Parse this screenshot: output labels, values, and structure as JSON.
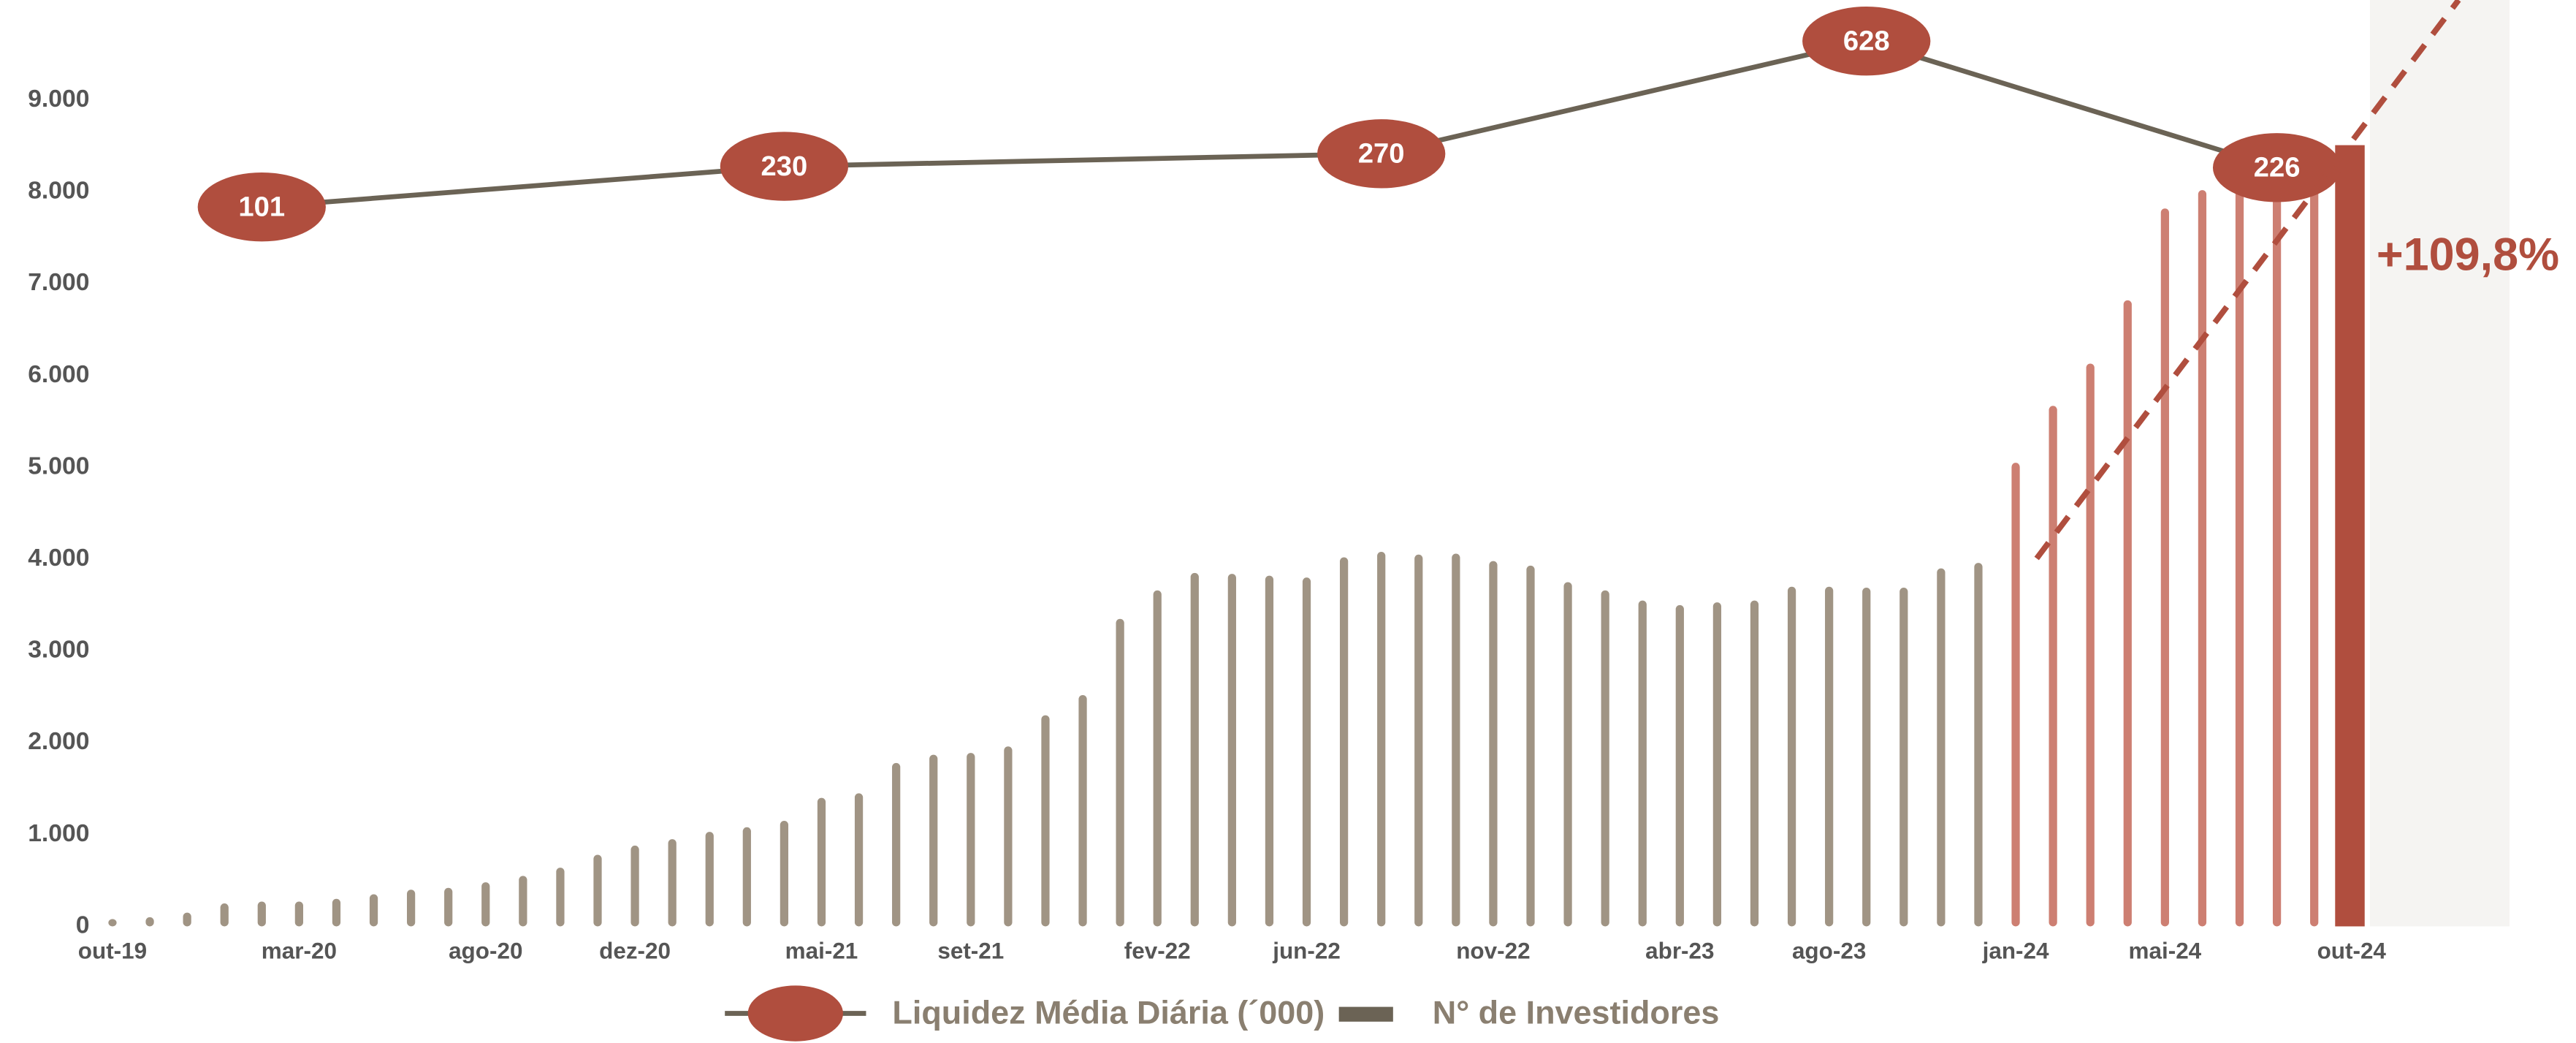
{
  "chart_data": {
    "type": "bar",
    "categories": [
      "out-19",
      null,
      null,
      null,
      null,
      "mar-20",
      null,
      null,
      null,
      null,
      "ago-20",
      null,
      null,
      null,
      "dez-20",
      null,
      null,
      null,
      null,
      "mai-21",
      null,
      null,
      null,
      "set-21",
      null,
      null,
      null,
      null,
      "fev-22",
      null,
      null,
      null,
      "jun-22",
      null,
      null,
      null,
      null,
      "nov-22",
      null,
      null,
      null,
      null,
      "abr-23",
      null,
      null,
      null,
      "ago-23",
      null,
      null,
      null,
      null,
      "jan-24",
      null,
      null,
      null,
      "mai-24",
      null,
      null,
      null,
      null,
      "out-24"
    ],
    "series": [
      {
        "name": "N° de Investidores",
        "type": "bar",
        "color": "#6b6355",
        "values": [
          80,
          100,
          150,
          250,
          270,
          270,
          300,
          350,
          400,
          420,
          480,
          550,
          640,
          780,
          880,
          950,
          1030,
          1080,
          1150,
          1400,
          1450,
          1780,
          1870,
          1890,
          1960,
          2300,
          2520,
          3350,
          3660,
          3850,
          3840,
          3820,
          3800,
          4020,
          4080,
          4050,
          4060,
          3980,
          3930,
          3750,
          3660,
          3550,
          3500,
          3530,
          3550,
          3700,
          3700,
          3690,
          3690,
          3900,
          3960,
          5050,
          5670,
          6130,
          6820,
          7820,
          8020,
          8330,
          8260,
          8420,
          8510
        ],
        "bar_colors": [
          "#a09484",
          "#a09484",
          "#a09484",
          "#a09484",
          "#a09484",
          "#a09484",
          "#a09484",
          "#a09484",
          "#a09484",
          "#a09484",
          "#a09484",
          "#a09484",
          "#a09484",
          "#a09484",
          "#a09484",
          "#a09484",
          "#a09484",
          "#a09484",
          "#a09484",
          "#a09484",
          "#a09484",
          "#a09484",
          "#a09484",
          "#a09484",
          "#a09484",
          "#a09484",
          "#a09484",
          "#a09484",
          "#a09484",
          "#a09484",
          "#a09484",
          "#a09484",
          "#a09484",
          "#a09484",
          "#a09484",
          "#a09484",
          "#a09484",
          "#a09484",
          "#a09484",
          "#a09484",
          "#a09484",
          "#a09484",
          "#a09484",
          "#a09484",
          "#a09484",
          "#a09484",
          "#a09484",
          "#a09484",
          "#a09484",
          "#a09484",
          "#a09484",
          "#cd7f72",
          "#cd7f72",
          "#cd7f72",
          "#cd7f72",
          "#cd7f72",
          "#cd7f72",
          "#cd7f72",
          "#cd7f72",
          "#cd7f72",
          "#b04e3e"
        ]
      },
      {
        "name": "Liquidez Média Diária (´000)",
        "type": "line",
        "color": "#6b6355",
        "marker_color": "#b04e3e",
        "connect_gaps": true,
        "values": [
          null,
          null,
          null,
          null,
          101,
          null,
          null,
          null,
          null,
          null,
          null,
          null,
          null,
          null,
          null,
          null,
          null,
          null,
          230,
          null,
          null,
          null,
          null,
          null,
          null,
          null,
          null,
          null,
          null,
          null,
          null,
          null,
          null,
          null,
          270,
          null,
          null,
          null,
          null,
          null,
          null,
          null,
          null,
          null,
          null,
          null,
          null,
          628,
          null,
          null,
          null,
          null,
          null,
          null,
          null,
          null,
          null,
          null,
          226,
          null,
          null
        ]
      }
    ],
    "ylim": [
      0,
      10000
    ],
    "yticks": [
      0,
      {
        "value": 1000,
        "label": "1.000"
      },
      {
        "value": 2000,
        "label": "2.000"
      },
      {
        "value": 3000,
        "label": "3.000"
      },
      {
        "value": 4000,
        "label": "4.000"
      },
      {
        "value": 5000,
        "label": "5.000"
      },
      {
        "value": 6000,
        "label": "6.000"
      },
      {
        "value": 7000,
        "label": "7.000"
      },
      {
        "value": 8000,
        "label": "8.000"
      },
      {
        "value": 9000,
        "label": "9.000"
      }
    ],
    "grid": false,
    "annotation": "+109,8%"
  }
}
